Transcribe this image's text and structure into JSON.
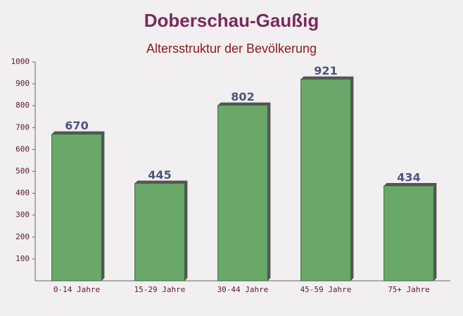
{
  "chart_data": {
    "type": "bar",
    "title": "Doberschau-Gaußig",
    "subtitle": "Altersstruktur der Bevölkerung",
    "categories": [
      "0-14 Jahre",
      "15-29 Jahre",
      "30-44 Jahre",
      "45-59 Jahre",
      "75+ Jahre"
    ],
    "values": [
      670,
      445,
      802,
      921,
      434
    ],
    "color": "#6aa86a",
    "ylim": [
      0,
      1000
    ],
    "yticks": [
      100,
      200,
      300,
      400,
      500,
      600,
      700,
      800,
      900,
      1000
    ]
  }
}
